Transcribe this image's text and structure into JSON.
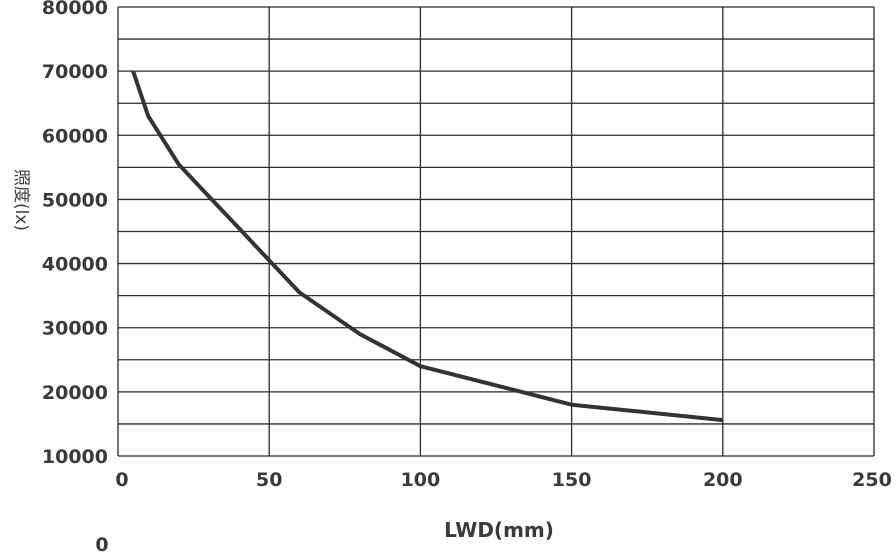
{
  "colors": {
    "line": "#333333",
    "grid": "#2b2b2b",
    "text": "#3a3a3a"
  },
  "chart_data": {
    "type": "line",
    "title": "",
    "xlabel": "LWD(mm)",
    "ylabel": "照度(lx)",
    "xlim": [
      0,
      250
    ],
    "ylim": [
      10000,
      80000
    ],
    "grid": true,
    "x_ticks": [
      "0",
      "50",
      "100",
      "150",
      "200",
      "250"
    ],
    "y_ticks": [
      "10000",
      "20000",
      "30000",
      "40000",
      "50000",
      "60000",
      "70000",
      "80000"
    ],
    "stray_label": "0",
    "series": [
      {
        "x": [
          5,
          10,
          20,
          30,
          40,
          50,
          60,
          80,
          100,
          125,
          150,
          175,
          200
        ],
        "y": [
          70000,
          63000,
          55500,
          50500,
          45500,
          40500,
          35500,
          29000,
          24000,
          21000,
          18000,
          16800,
          15600
        ]
      }
    ]
  }
}
